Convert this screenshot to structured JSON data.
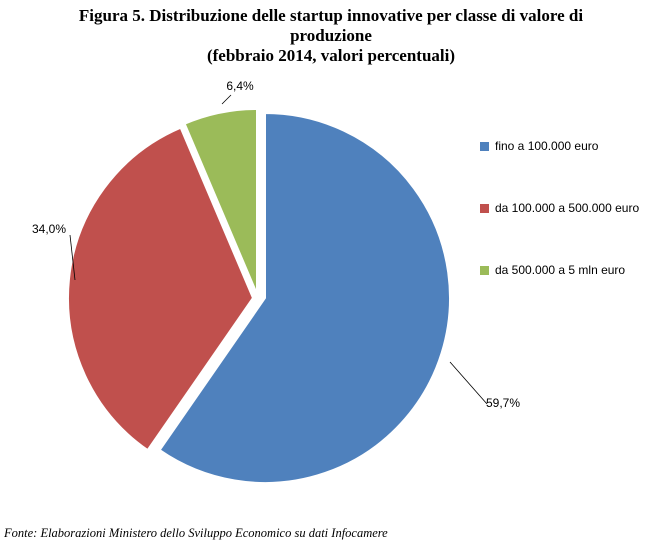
{
  "title": {
    "line1": "Figura 5. Distribuzione delle startup innovative per classe di valore di",
    "line2": "produzione",
    "line3": "(febbraio 2014, valori percentuali)"
  },
  "source": "Fonte: Elaborazioni Ministero dello Sviluppo Economico su dati Infocamere",
  "chart_data": {
    "type": "pie",
    "title": "Figura 5. Distribuzione delle startup innovative per classe di valore di produzione (febbraio 2014, valori percentuali)",
    "exploded": true,
    "legend_position": "right",
    "slices": [
      {
        "label": "fino a 100.000 euro",
        "value": 59.7,
        "value_label": "59,7%",
        "color": "#4F81BD"
      },
      {
        "label": "da 100.000 a 500.000 euro",
        "value": 34.0,
        "value_label": "34,0%",
        "color": "#C0504D"
      },
      {
        "label": "da 500.000 a 5 mln euro",
        "value": 6.4,
        "value_label": "6,4%",
        "color": "#9BBB59"
      }
    ]
  }
}
